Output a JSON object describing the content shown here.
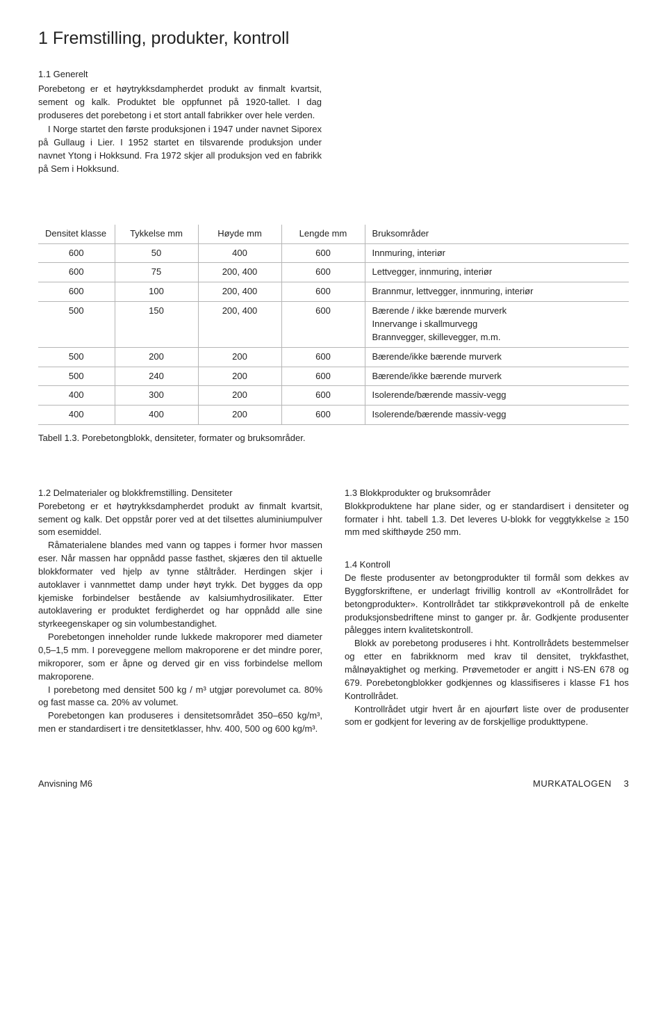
{
  "chapter": {
    "title": "1  Fremstilling, produkter, kontroll"
  },
  "intro": {
    "heading": "1.1  Generelt",
    "p1": "Porebetong er et høytrykksdampherdet produkt av finmalt kvartsit, sement og kalk. Produktet ble oppfunnet på 1920-tallet. I dag produseres det porebetong i et stort antall fabrikker over hele verden.",
    "p2": "I Norge startet den første produksjonen i 1947 under navnet Siporex på Gullaug i Lier. I 1952 startet en tilsvarende produksjon under navnet Ytong i Hokksund. Fra 1972 skjer all produksjon ved en fabrikk på Sem i Hokksund."
  },
  "table": {
    "headers": {
      "c0": "Densitet klasse",
      "c1": "Tykkelse mm",
      "c2": "Høyde mm",
      "c3": "Lengde mm",
      "c4": "Bruksområder"
    },
    "rows": [
      {
        "c0": "600",
        "c1": "50",
        "c2": "400",
        "c3": "600",
        "c4": "Innmuring, interiør"
      },
      {
        "c0": "600",
        "c1": "75",
        "c2": "200, 400",
        "c3": "600",
        "c4": "Lettvegger, innmuring, interiør"
      },
      {
        "c0": "600",
        "c1": "100",
        "c2": "200, 400",
        "c3": "600",
        "c4": "Brannmur, lettvegger, innmuring, interiør"
      },
      {
        "c0": "500",
        "c1": "150",
        "c2": "200, 400",
        "c3": "600",
        "c4": "Bærende / ikke bærende murverk\nInnervange i skallmurvegg\nBrannvegger, skillevegger, m.m."
      },
      {
        "c0": "500",
        "c1": "200",
        "c2": "200",
        "c3": "600",
        "c4": "Bærende/ikke bærende murverk"
      },
      {
        "c0": "500",
        "c1": "240",
        "c2": "200",
        "c3": "600",
        "c4": "Bærende/ikke bærende murverk"
      },
      {
        "c0": "400",
        "c1": "300",
        "c2": "200",
        "c3": "600",
        "c4": "Isolerende/bærende massiv-vegg"
      },
      {
        "c0": "400",
        "c1": "400",
        "c2": "200",
        "c3": "600",
        "c4": "Isolerende/bærende massiv-vegg"
      }
    ],
    "caption": "Tabell 1.3.  Porebetongblokk, densiteter, formater og bruksområder."
  },
  "left": {
    "h1": "1.2  Delmaterialer og blokkfremstilling. Densiteter",
    "p1": "Porebetong er et høytrykksdampherdet produkt av finmalt kvartsit, sement og kalk. Det oppstår porer ved at det tilsettes aluminiumpulver som esemiddel.",
    "p2": "Råmaterialene blandes med vann og tappes i former hvor massen eser. Når massen har oppnådd passe fasthet, skjæres den til aktuelle blokkformater ved hjelp av tynne ståltråder. Herdingen skjer i autoklaver i vannmettet damp under høyt trykk. Det bygges da opp kjemiske forbindelser bestående av kalsiumhydrosilikater. Etter autoklavering er produktet ferdigherdet og har oppnådd alle sine styrkeegenskaper og sin volumbestandighet.",
    "p3": "Porebetongen inneholder runde lukkede makroporer med diameter 0,5–1,5 mm. I poreveggene mellom makroporene er det mindre porer, mikroporer, som er åpne og derved gir en viss forbindelse mellom makroporene.",
    "p4": "I porebetong med densitet 500 kg / m³ utgjør porevolumet ca. 80% og fast masse ca. 20% av volumet.",
    "p5": "Porebetongen kan produseres i densitetsområdet 350–650 kg/m³, men er standardisert i tre densitetklasser, hhv. 400, 500 og 600 kg/m³."
  },
  "right": {
    "h1": "1.3  Blokkprodukter og bruksområder",
    "p1": "Blokkproduktene har plane sider, og er standardisert i densiteter og formater i hht. tabell 1.3. Det leveres U-blokk for veggtykkelse ≥ 150 mm med skifthøyde 250 mm.",
    "h2": "1.4 Kontroll",
    "p2": "De fleste produsenter av betongprodukter til formål som dekkes av Byggforskriftene, er underlagt frivillig kontroll av «Kontrollrådet for betongprodukter». Kontrollrådet tar stikkprøvekontroll på de enkelte produksjonsbedriftene minst to ganger pr. år. Godkjente produsenter pålegges intern kvalitetskontroll.",
    "p3": "Blokk av porebetong produseres i hht. Kontrollrådets bestemmelser og etter en fabrikknorm med krav til densitet, trykkfasthet, målnøyaktighet og merking. Prøvemetoder er angitt i NS-EN 678 og 679. Porebetongblokker godkjennes og klassifiseres i klasse F1 hos Kontrollrådet.",
    "p4": "Kontrollrådet utgir hvert år en ajourført liste over de produsenter som er godkjent for levering av de forskjellige produkttypene."
  },
  "footer": {
    "left": "Anvisning M6",
    "right_cat": "MURKATALOGEN",
    "right_page": "3"
  }
}
